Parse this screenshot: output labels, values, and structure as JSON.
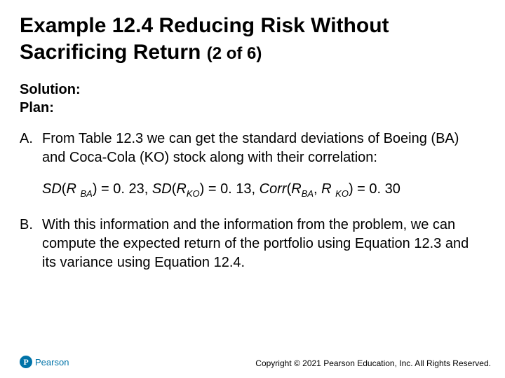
{
  "title_main": "Example 12.4 Reducing Risk Without Sacrificing Return ",
  "title_sub": "(2 of 6)",
  "solution_label": "Solution:",
  "plan_label": "Plan:",
  "item_a_marker": "A.",
  "item_a_text": "From Table 12.3 we can get the standard deviations of Boeing (BA) and Coca-Cola (KO) stock along with their correlation:",
  "formula": {
    "sd_label": "SD",
    "r_label": "R",
    "ba_sub": "BA",
    "ko_sub": "KO",
    "sd_ba_val": "0. 23",
    "sd_ko_val": "0. 13",
    "corr_label": "Corr",
    "corr_val": "0. 30"
  },
  "item_b_marker": "B.",
  "item_b_text": "With this information and the information from the problem, we can compute the expected return of the portfolio using Equation 12.3 and its variance using Equation 12.4.",
  "logo_text": "Pearson",
  "logo_mark": "P",
  "copyright": "Copyright © 2021 Pearson Education, Inc. All Rights Reserved.",
  "colors": {
    "brand": "#0073a8",
    "text": "#000000",
    "bg": "#ffffff"
  },
  "fontsize": {
    "title": 30,
    "title_sub": 24,
    "body": 20,
    "footer": 12
  }
}
